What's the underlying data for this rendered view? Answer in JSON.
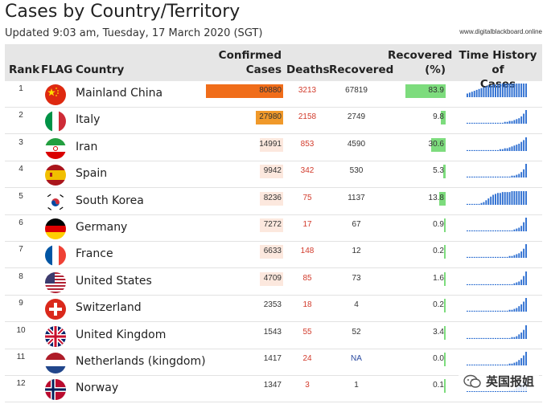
{
  "header": {
    "title": "Cases by Country/Territory",
    "updated": "Updated 9:03 am, Tuesday, 17 March 2020 (SGT)",
    "site": "www.digitalblackboard.online"
  },
  "columns": {
    "rank": "Rank",
    "flag": "FLAG",
    "country": "Country",
    "confirmed_1": "Confirmed",
    "confirmed_2": "Cases",
    "deaths": "Deaths",
    "recovered": "Recovered",
    "recovered_pct_1": "Recovered",
    "recovered_pct_2": "(%)",
    "history_1": "Time History of",
    "history_2": "Cases"
  },
  "colors": {
    "bar_orange": "#f0992a",
    "bar_orange_dark": "#f06d1a",
    "bar_peach": "#fce8de",
    "pct_green": "#7ddc7d",
    "deaths_red": "#d23b2c",
    "spark_blue": "#2e6fd1"
  },
  "rows": [
    {
      "rank": "1",
      "flag": "china-flag-icon",
      "country": "Mainland China",
      "confirmed": "80880",
      "confirmed_fraction": 1.0,
      "confirmed_color": "#f06d1a",
      "deaths": "3213",
      "recovered": "67819",
      "recovered_pct": "83.9",
      "pct_fraction": 0.839,
      "spark": [
        4,
        5,
        6,
        7,
        8,
        9,
        10,
        11,
        12,
        13,
        13,
        14,
        14,
        14,
        15,
        15,
        15,
        15,
        15,
        15,
        15,
        15,
        15,
        15,
        15,
        15
      ]
    },
    {
      "rank": "2",
      "flag": "italy-flag-icon",
      "country": "Italy",
      "confirmed": "27980",
      "confirmed_fraction": 0.35,
      "confirmed_color": "#f0992a",
      "deaths": "2158",
      "recovered": "2749",
      "recovered_pct": "9.8",
      "pct_fraction": 0.098,
      "spark": [
        1,
        1,
        1,
        1,
        1,
        1,
        1,
        1,
        1,
        1,
        1,
        1,
        1,
        1,
        1,
        1,
        2,
        2,
        3,
        3,
        4,
        5,
        6,
        8,
        11,
        15
      ]
    },
    {
      "rank": "3",
      "flag": "iran-flag-icon",
      "country": "Iran",
      "confirmed": "14991",
      "confirmed_fraction": 0.19,
      "confirmed_color": "#fce8de",
      "deaths": "853",
      "recovered": "4590",
      "recovered_pct": "30.6",
      "pct_fraction": 0.306,
      "spark": [
        1,
        1,
        1,
        1,
        1,
        1,
        1,
        1,
        1,
        1,
        1,
        1,
        1,
        1,
        2,
        2,
        3,
        3,
        4,
        5,
        6,
        7,
        8,
        10,
        12,
        15
      ]
    },
    {
      "rank": "4",
      "flag": "spain-flag-icon",
      "country": "Spain",
      "confirmed": "9942",
      "confirmed_fraction": 0.12,
      "confirmed_color": "#fce8de",
      "deaths": "342",
      "recovered": "530",
      "recovered_pct": "5.3",
      "pct_fraction": 0.053,
      "spark": [
        1,
        1,
        1,
        1,
        1,
        1,
        1,
        1,
        1,
        1,
        1,
        1,
        1,
        1,
        1,
        1,
        1,
        1,
        1,
        2,
        2,
        3,
        4,
        6,
        9,
        15
      ]
    },
    {
      "rank": "5",
      "flag": "south-korea-flag-icon",
      "country": "South Korea",
      "confirmed": "8236",
      "confirmed_fraction": 0.1,
      "confirmed_color": "#fce8de",
      "deaths": "75",
      "recovered": "1137",
      "recovered_pct": "13.8",
      "pct_fraction": 0.138,
      "spark": [
        1,
        1,
        1,
        1,
        1,
        1,
        2,
        3,
        5,
        7,
        9,
        11,
        12,
        13,
        13,
        14,
        14,
        14,
        14,
        15,
        15,
        15,
        15,
        15,
        15,
        15
      ]
    },
    {
      "rank": "6",
      "flag": "germany-flag-icon",
      "country": "Germany",
      "confirmed": "7272",
      "confirmed_fraction": 0.09,
      "confirmed_color": "#fce8de",
      "deaths": "17",
      "recovered": "67",
      "recovered_pct": "0.9",
      "pct_fraction": 0.009,
      "spark": [
        1,
        1,
        1,
        1,
        1,
        1,
        1,
        1,
        1,
        1,
        1,
        1,
        1,
        1,
        1,
        1,
        1,
        1,
        1,
        1,
        2,
        3,
        4,
        6,
        10,
        15
      ]
    },
    {
      "rank": "7",
      "flag": "france-flag-icon",
      "country": "France",
      "confirmed": "6633",
      "confirmed_fraction": 0.08,
      "confirmed_color": "#fce8de",
      "deaths": "148",
      "recovered": "12",
      "recovered_pct": "0.2",
      "pct_fraction": 0.002,
      "spark": [
        1,
        1,
        1,
        1,
        1,
        1,
        1,
        1,
        1,
        1,
        1,
        1,
        1,
        1,
        1,
        1,
        1,
        1,
        2,
        2,
        3,
        4,
        5,
        7,
        10,
        15
      ]
    },
    {
      "rank": "8",
      "flag": "usa-flag-icon",
      "country": "United States",
      "confirmed": "4709",
      "confirmed_fraction": 0.06,
      "confirmed_color": "#fce8de",
      "deaths": "85",
      "recovered": "73",
      "recovered_pct": "1.6",
      "pct_fraction": 0.016,
      "spark": [
        1,
        1,
        1,
        1,
        1,
        1,
        1,
        1,
        1,
        1,
        1,
        1,
        1,
        1,
        1,
        1,
        1,
        1,
        1,
        1,
        2,
        3,
        4,
        6,
        10,
        15
      ]
    },
    {
      "rank": "9",
      "flag": "switzerland-flag-icon",
      "country": "Switzerland",
      "confirmed": "2353",
      "confirmed_fraction": 0.03,
      "confirmed_color": "#ffffff",
      "deaths": "18",
      "recovered": "4",
      "recovered_pct": "0.2",
      "pct_fraction": 0.002,
      "spark": [
        1,
        1,
        1,
        1,
        1,
        1,
        1,
        1,
        1,
        1,
        1,
        1,
        1,
        1,
        1,
        1,
        1,
        1,
        2,
        2,
        3,
        4,
        6,
        8,
        11,
        15
      ]
    },
    {
      "rank": "10",
      "flag": "uk-flag-icon",
      "country": "United Kingdom",
      "confirmed": "1543",
      "confirmed_fraction": 0.02,
      "confirmed_color": "#ffffff",
      "deaths": "55",
      "recovered": "52",
      "recovered_pct": "3.4",
      "pct_fraction": 0.034,
      "spark": [
        1,
        1,
        1,
        1,
        1,
        1,
        1,
        1,
        1,
        1,
        1,
        1,
        1,
        1,
        1,
        1,
        1,
        1,
        1,
        2,
        2,
        3,
        5,
        7,
        10,
        15
      ]
    },
    {
      "rank": "11",
      "flag": "netherlands-flag-icon",
      "country": "Netherlands (kingdom)",
      "confirmed": "1417",
      "confirmed_fraction": 0.02,
      "confirmed_color": "#ffffff",
      "deaths": "24",
      "recovered": "NA",
      "recovered_pct": "0.0",
      "pct_fraction": 0.0,
      "spark": [
        1,
        1,
        1,
        1,
        1,
        1,
        1,
        1,
        1,
        1,
        1,
        1,
        1,
        1,
        1,
        1,
        1,
        1,
        2,
        2,
        3,
        4,
        6,
        8,
        11,
        15
      ]
    },
    {
      "rank": "12",
      "flag": "norway-flag-icon",
      "country": "Norway",
      "confirmed": "1347",
      "confirmed_fraction": 0.02,
      "confirmed_color": "#ffffff",
      "deaths": "3",
      "recovered": "1",
      "recovered_pct": "0.1",
      "pct_fraction": 0.001,
      "spark": [
        1,
        1,
        1,
        1,
        1,
        1,
        1,
        1,
        1,
        1,
        1,
        1,
        1,
        1,
        1,
        1,
        1,
        1,
        2,
        2,
        3,
        5,
        7,
        9,
        12,
        15
      ]
    }
  ],
  "watermark": {
    "text": "英国报姐",
    "icon": "wechat-icon"
  }
}
